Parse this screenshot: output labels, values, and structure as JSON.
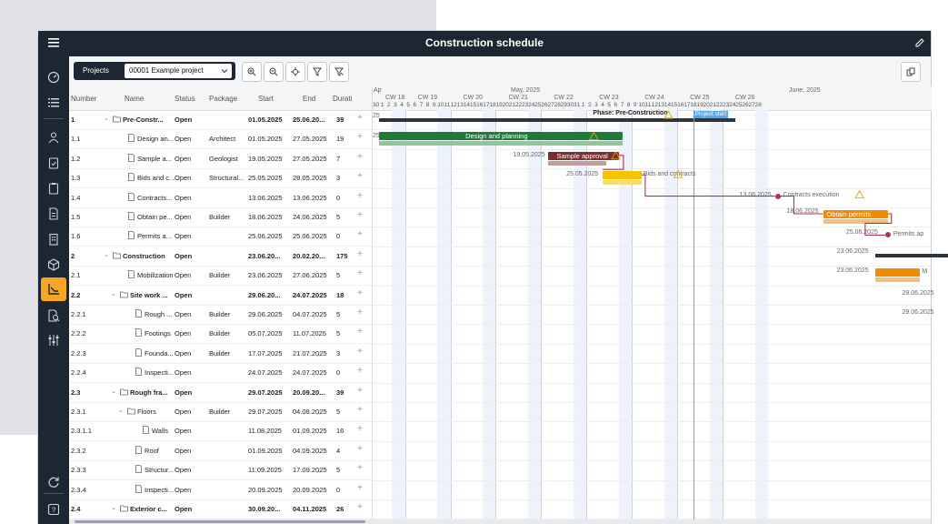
{
  "window": {
    "title": "Construction schedule"
  },
  "toolbar": {
    "projects_label": "Projects",
    "project_value": "00001 Example project"
  },
  "columns": {
    "number": "Number",
    "name": "Name",
    "status": "Status",
    "package": "Package",
    "start": "Start",
    "end": "End",
    "duration": "Durati"
  },
  "rows": [
    {
      "number": "1",
      "name": "Pre-Constr...",
      "status": "Open",
      "package": "",
      "start": "01.05.2025",
      "end": "25.06.20...",
      "duration": "39",
      "bold": true,
      "folder": true,
      "indent": 0
    },
    {
      "number": "1.1",
      "name": "Design an...",
      "status": "Open",
      "package": "Architect",
      "start": "01.05.2025",
      "end": "27.05.2025",
      "duration": "19",
      "bold": false,
      "folder": false,
      "indent": 1
    },
    {
      "number": "1.2",
      "name": "Sample a...",
      "status": "Open",
      "package": "Geologist",
      "start": "19.05.2025",
      "end": "27.05.2025",
      "duration": "7",
      "bold": false,
      "folder": false,
      "indent": 1
    },
    {
      "number": "1.3",
      "name": "Bids and c...",
      "status": "Open",
      "package": "Structural...",
      "start": "25.05.2025",
      "end": "28.05.2025",
      "duration": "3",
      "bold": false,
      "folder": false,
      "indent": 1
    },
    {
      "number": "1.4",
      "name": "Contracts...",
      "status": "Open",
      "package": "",
      "start": "13.06.2025",
      "end": "13.06.2025",
      "duration": "0",
      "bold": false,
      "folder": false,
      "indent": 1
    },
    {
      "number": "1.5",
      "name": "Obtain pe...",
      "status": "Open",
      "package": "Builder",
      "start": "18.06.2025",
      "end": "24.06.2025",
      "duration": "5",
      "bold": false,
      "folder": false,
      "indent": 1
    },
    {
      "number": "1.6",
      "name": "Permits a...",
      "status": "Open",
      "package": "",
      "start": "25.06.2025",
      "end": "25.06.2025",
      "duration": "0",
      "bold": false,
      "folder": false,
      "indent": 1
    },
    {
      "number": "2",
      "name": "Construction",
      "status": "Open",
      "package": "",
      "start": "23.06.20...",
      "end": "20.02.20...",
      "duration": "175",
      "bold": true,
      "folder": true,
      "indent": 0
    },
    {
      "number": "2.1",
      "name": "Mobilization",
      "status": "Open",
      "package": "Builder",
      "start": "23.06.2025",
      "end": "27.06.2025",
      "duration": "5",
      "bold": false,
      "folder": false,
      "indent": 1
    },
    {
      "number": "2.2",
      "name": "Site work ...",
      "status": "Open",
      "package": "",
      "start": "29.06.20...",
      "end": "24.07.2025",
      "duration": "18",
      "bold": true,
      "folder": true,
      "indent": 1
    },
    {
      "number": "2.2.1",
      "name": "Rough ...",
      "status": "Open",
      "package": "Builder",
      "start": "29.06.2025",
      "end": "04.07.2025",
      "duration": "5",
      "bold": false,
      "folder": false,
      "indent": 2
    },
    {
      "number": "2.2.2",
      "name": "Footings",
      "status": "Open",
      "package": "Builder",
      "start": "05.07.2025",
      "end": "11.07.2025",
      "duration": "5",
      "bold": false,
      "folder": false,
      "indent": 2
    },
    {
      "number": "2.2.3",
      "name": "Founda...",
      "status": "Open",
      "package": "Builder",
      "start": "17.07.2025",
      "end": "21.07.2025",
      "duration": "3",
      "bold": false,
      "folder": false,
      "indent": 2
    },
    {
      "number": "2.2.4",
      "name": "Inspecti...",
      "status": "Open",
      "package": "",
      "start": "24.07.2025",
      "end": "24.07.2025",
      "duration": "0",
      "bold": false,
      "folder": false,
      "indent": 2
    },
    {
      "number": "2.3",
      "name": "Rough fra...",
      "status": "Open",
      "package": "",
      "start": "29.07.2025",
      "end": "20.09.20...",
      "duration": "39",
      "bold": true,
      "folder": true,
      "indent": 1
    },
    {
      "number": "2.3.1",
      "name": "Floors",
      "status": "Open",
      "package": "Builder",
      "start": "29.07.2025",
      "end": "04.08.2025",
      "duration": "5",
      "bold": false,
      "folder": true,
      "indent": 2
    },
    {
      "number": "2.3.1.1",
      "name": "Walls",
      "status": "Open",
      "package": "",
      "start": "11.08.2025",
      "end": "01.09.2025",
      "duration": "16",
      "bold": false,
      "folder": false,
      "indent": 3
    },
    {
      "number": "2.3.2",
      "name": "Roof",
      "status": "Open",
      "package": "",
      "start": "01.09.2025",
      "end": "04.09.2025",
      "duration": "4",
      "bold": false,
      "folder": false,
      "indent": 2
    },
    {
      "number": "2.3.3",
      "name": "Structur...",
      "status": "Open",
      "package": "",
      "start": "11.09.2025",
      "end": "17.09.2025",
      "duration": "5",
      "bold": false,
      "folder": false,
      "indent": 2
    },
    {
      "number": "2.3.4",
      "name": "Inspecti...",
      "status": "Open",
      "package": "",
      "start": "20.09.2025",
      "end": "20.09.2025",
      "duration": "0",
      "bold": false,
      "folder": false,
      "indent": 2
    },
    {
      "number": "2.4",
      "name": "Exterior c...",
      "status": "Open",
      "package": "",
      "start": "30.09.20...",
      "end": "04.11.2025",
      "duration": "26",
      "bold": true,
      "folder": true,
      "indent": 1
    }
  ],
  "gantt": {
    "months": [
      "Ap",
      "May, 2025",
      "June, 2025"
    ],
    "weeks": [
      "CW 18",
      "CW 19",
      "CW 20",
      "CW 21",
      "CW 22",
      "CW 23",
      "CW 24",
      "CW 25",
      "CW 26"
    ],
    "days": [
      30,
      1,
      2,
      3,
      4,
      5,
      6,
      7,
      8,
      9,
      10,
      11,
      12,
      13,
      14,
      15,
      16,
      17,
      18,
      19,
      20,
      21,
      22,
      23,
      24,
      25,
      26,
      27,
      28,
      29,
      30,
      31,
      1,
      2,
      3,
      4,
      5,
      6,
      7,
      8,
      9,
      10,
      11,
      12,
      13,
      14,
      15,
      16,
      17,
      18,
      19,
      20,
      21,
      22,
      23,
      24,
      25,
      26,
      27,
      28
    ],
    "phase_label": "Phase: Pre-Construction",
    "project_start_label": "Project start",
    "bars": {
      "design": "Design and planning",
      "sample": "Sample approval",
      "bids": "Bids and contracts",
      "contracts": "Contracts execution",
      "permits": "Obtain permits",
      "permits_approved": "Permits ap",
      "mob_label": "M"
    },
    "dates": {
      "row0": "25",
      "row1": "25",
      "sample_start": "19.05.2025",
      "bids_start": "25.05.2025",
      "contracts": "13.06.2025",
      "permits_start": "18.06.2025",
      "permits_ms": "25.06.2025",
      "construction_start": "23.06.2025",
      "mob_start": "23.06.2025",
      "site_start": "29.06.2025",
      "rough_start": "29.06.2025"
    }
  }
}
